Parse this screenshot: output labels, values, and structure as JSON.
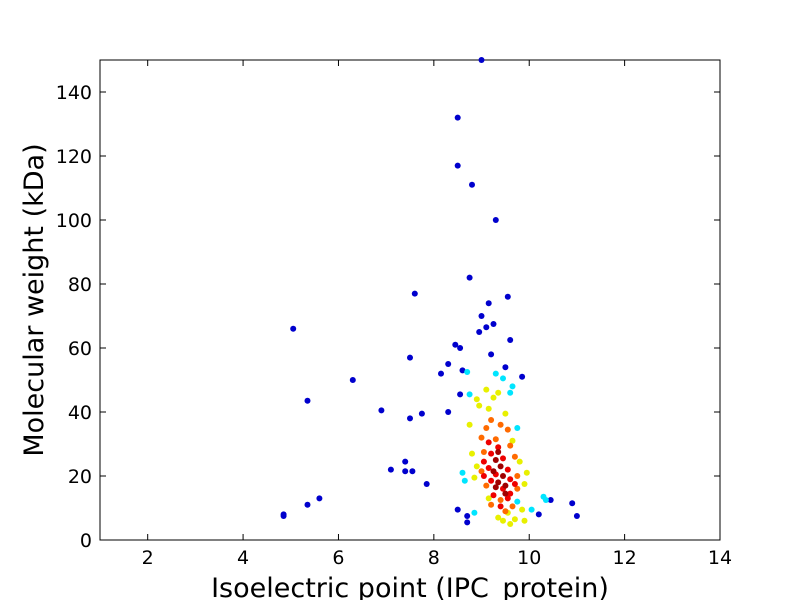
{
  "chart_data": {
    "type": "scatter",
    "xlabel": "Isoelectric point (IPC_protein)",
    "ylabel": "Molecular weight (kDa)",
    "xlim": [
      1,
      14
    ],
    "ylim": [
      0,
      150
    ],
    "xticks": [
      2,
      4,
      6,
      8,
      10,
      12,
      14
    ],
    "yticks": [
      0,
      20,
      40,
      60,
      80,
      100,
      120,
      140
    ],
    "grid": false,
    "color_by": "point density (jet colormap)",
    "colors": {
      "low": "#0000cd",
      "cyan": "#00e5ff",
      "yellow": "#e8f000",
      "orange": "#ff6a00",
      "red": "#ee0000",
      "high": "#a00000"
    },
    "points": [
      {
        "x": 9.0,
        "y": 150,
        "c": "low"
      },
      {
        "x": 8.5,
        "y": 132,
        "c": "low"
      },
      {
        "x": 8.5,
        "y": 117,
        "c": "low"
      },
      {
        "x": 8.8,
        "y": 111,
        "c": "low"
      },
      {
        "x": 9.3,
        "y": 100,
        "c": "low"
      },
      {
        "x": 8.75,
        "y": 82,
        "c": "low"
      },
      {
        "x": 7.6,
        "y": 77,
        "c": "low"
      },
      {
        "x": 9.55,
        "y": 76,
        "c": "low"
      },
      {
        "x": 9.15,
        "y": 74,
        "c": "low"
      },
      {
        "x": 9.0,
        "y": 70,
        "c": "low"
      },
      {
        "x": 9.25,
        "y": 67.5,
        "c": "low"
      },
      {
        "x": 9.1,
        "y": 66.5,
        "c": "low"
      },
      {
        "x": 5.05,
        "y": 66,
        "c": "low"
      },
      {
        "x": 8.95,
        "y": 65,
        "c": "low"
      },
      {
        "x": 9.6,
        "y": 62.5,
        "c": "low"
      },
      {
        "x": 8.45,
        "y": 61,
        "c": "low"
      },
      {
        "x": 8.55,
        "y": 60,
        "c": "low"
      },
      {
        "x": 9.2,
        "y": 58,
        "c": "low"
      },
      {
        "x": 7.5,
        "y": 57,
        "c": "low"
      },
      {
        "x": 8.3,
        "y": 55,
        "c": "low"
      },
      {
        "x": 9.5,
        "y": 54,
        "c": "low"
      },
      {
        "x": 8.6,
        "y": 53,
        "c": "low"
      },
      {
        "x": 8.15,
        "y": 52,
        "c": "low"
      },
      {
        "x": 9.85,
        "y": 51,
        "c": "low"
      },
      {
        "x": 6.3,
        "y": 50,
        "c": "low"
      },
      {
        "x": 8.55,
        "y": 45.5,
        "c": "low"
      },
      {
        "x": 5.35,
        "y": 43.5,
        "c": "low"
      },
      {
        "x": 6.9,
        "y": 40.5,
        "c": "low"
      },
      {
        "x": 8.3,
        "y": 40,
        "c": "low"
      },
      {
        "x": 7.75,
        "y": 39.5,
        "c": "low"
      },
      {
        "x": 7.5,
        "y": 38,
        "c": "low"
      },
      {
        "x": 7.4,
        "y": 24.5,
        "c": "low"
      },
      {
        "x": 7.1,
        "y": 22,
        "c": "low"
      },
      {
        "x": 7.4,
        "y": 21.5,
        "c": "low"
      },
      {
        "x": 7.55,
        "y": 21.5,
        "c": "low"
      },
      {
        "x": 7.85,
        "y": 17.5,
        "c": "low"
      },
      {
        "x": 5.6,
        "y": 13,
        "c": "low"
      },
      {
        "x": 10.45,
        "y": 12.5,
        "c": "low"
      },
      {
        "x": 10.9,
        "y": 11.5,
        "c": "low"
      },
      {
        "x": 5.35,
        "y": 11,
        "c": "low"
      },
      {
        "x": 8.5,
        "y": 9.5,
        "c": "low"
      },
      {
        "x": 4.85,
        "y": 8,
        "c": "low"
      },
      {
        "x": 4.85,
        "y": 7.5,
        "c": "low"
      },
      {
        "x": 11.0,
        "y": 7.5,
        "c": "low"
      },
      {
        "x": 8.7,
        "y": 7.5,
        "c": "low"
      },
      {
        "x": 8.7,
        "y": 5.5,
        "c": "low"
      },
      {
        "x": 10.2,
        "y": 8,
        "c": "low"
      },
      {
        "x": 8.7,
        "y": 52.5,
        "c": "cyan"
      },
      {
        "x": 9.3,
        "y": 52,
        "c": "cyan"
      },
      {
        "x": 9.45,
        "y": 50.5,
        "c": "cyan"
      },
      {
        "x": 9.65,
        "y": 48,
        "c": "cyan"
      },
      {
        "x": 8.75,
        "y": 45.5,
        "c": "cyan"
      },
      {
        "x": 9.6,
        "y": 46,
        "c": "cyan"
      },
      {
        "x": 9.75,
        "y": 35,
        "c": "cyan"
      },
      {
        "x": 8.6,
        "y": 21,
        "c": "cyan"
      },
      {
        "x": 8.65,
        "y": 18.5,
        "c": "cyan"
      },
      {
        "x": 10.3,
        "y": 13.5,
        "c": "cyan"
      },
      {
        "x": 10.35,
        "y": 12.5,
        "c": "cyan"
      },
      {
        "x": 9.75,
        "y": 12,
        "c": "cyan"
      },
      {
        "x": 10.05,
        "y": 9.5,
        "c": "cyan"
      },
      {
        "x": 8.85,
        "y": 8.5,
        "c": "cyan"
      },
      {
        "x": 9.1,
        "y": 47,
        "c": "yellow"
      },
      {
        "x": 9.35,
        "y": 46,
        "c": "yellow"
      },
      {
        "x": 8.9,
        "y": 44,
        "c": "yellow"
      },
      {
        "x": 9.25,
        "y": 44.5,
        "c": "yellow"
      },
      {
        "x": 8.95,
        "y": 42,
        "c": "yellow"
      },
      {
        "x": 9.15,
        "y": 41,
        "c": "yellow"
      },
      {
        "x": 9.5,
        "y": 39.5,
        "c": "yellow"
      },
      {
        "x": 8.75,
        "y": 36,
        "c": "yellow"
      },
      {
        "x": 9.65,
        "y": 31,
        "c": "yellow"
      },
      {
        "x": 8.8,
        "y": 27,
        "c": "yellow"
      },
      {
        "x": 9.8,
        "y": 24.5,
        "c": "yellow"
      },
      {
        "x": 8.9,
        "y": 23,
        "c": "yellow"
      },
      {
        "x": 9.95,
        "y": 21,
        "c": "yellow"
      },
      {
        "x": 8.85,
        "y": 19.5,
        "c": "yellow"
      },
      {
        "x": 9.9,
        "y": 17.5,
        "c": "yellow"
      },
      {
        "x": 9.15,
        "y": 13,
        "c": "yellow"
      },
      {
        "x": 9.85,
        "y": 9.5,
        "c": "yellow"
      },
      {
        "x": 9.55,
        "y": 8.5,
        "c": "yellow"
      },
      {
        "x": 9.45,
        "y": 6,
        "c": "yellow"
      },
      {
        "x": 9.7,
        "y": 6.5,
        "c": "yellow"
      },
      {
        "x": 9.9,
        "y": 6,
        "c": "yellow"
      },
      {
        "x": 9.35,
        "y": 7,
        "c": "yellow"
      },
      {
        "x": 9.6,
        "y": 5,
        "c": "yellow"
      },
      {
        "x": 9.2,
        "y": 37.5,
        "c": "orange"
      },
      {
        "x": 9.4,
        "y": 36,
        "c": "orange"
      },
      {
        "x": 9.1,
        "y": 35,
        "c": "orange"
      },
      {
        "x": 9.55,
        "y": 34.5,
        "c": "orange"
      },
      {
        "x": 9.0,
        "y": 32,
        "c": "orange"
      },
      {
        "x": 9.3,
        "y": 31.5,
        "c": "orange"
      },
      {
        "x": 9.6,
        "y": 29.5,
        "c": "orange"
      },
      {
        "x": 9.05,
        "y": 27.5,
        "c": "orange"
      },
      {
        "x": 9.7,
        "y": 26,
        "c": "orange"
      },
      {
        "x": 9.0,
        "y": 21.5,
        "c": "orange"
      },
      {
        "x": 9.75,
        "y": 20,
        "c": "orange"
      },
      {
        "x": 9.1,
        "y": 17,
        "c": "orange"
      },
      {
        "x": 9.75,
        "y": 16,
        "c": "orange"
      },
      {
        "x": 9.2,
        "y": 11,
        "c": "orange"
      },
      {
        "x": 9.65,
        "y": 10.5,
        "c": "orange"
      },
      {
        "x": 9.5,
        "y": 9,
        "c": "orange"
      },
      {
        "x": 9.4,
        "y": 12.5,
        "c": "orange"
      },
      {
        "x": 9.15,
        "y": 30.5,
        "c": "red"
      },
      {
        "x": 9.35,
        "y": 29,
        "c": "red"
      },
      {
        "x": 9.2,
        "y": 27,
        "c": "red"
      },
      {
        "x": 9.45,
        "y": 25.5,
        "c": "red"
      },
      {
        "x": 9.05,
        "y": 24.5,
        "c": "red"
      },
      {
        "x": 9.15,
        "y": 22.5,
        "c": "red"
      },
      {
        "x": 9.55,
        "y": 22,
        "c": "red"
      },
      {
        "x": 9.05,
        "y": 20,
        "c": "red"
      },
      {
        "x": 9.6,
        "y": 19,
        "c": "red"
      },
      {
        "x": 9.2,
        "y": 18.5,
        "c": "red"
      },
      {
        "x": 9.7,
        "y": 17.5,
        "c": "red"
      },
      {
        "x": 9.45,
        "y": 16,
        "c": "red"
      },
      {
        "x": 9.6,
        "y": 14.5,
        "c": "red"
      },
      {
        "x": 9.25,
        "y": 14,
        "c": "red"
      },
      {
        "x": 9.55,
        "y": 13,
        "c": "red"
      },
      {
        "x": 9.4,
        "y": 10.5,
        "c": "red"
      },
      {
        "x": 9.3,
        "y": 20.5,
        "c": "red"
      },
      {
        "x": 9.3,
        "y": 25,
        "c": "high"
      },
      {
        "x": 9.4,
        "y": 23,
        "c": "high"
      },
      {
        "x": 9.25,
        "y": 21.5,
        "c": "high"
      },
      {
        "x": 9.45,
        "y": 20,
        "c": "high"
      },
      {
        "x": 9.35,
        "y": 18,
        "c": "high"
      },
      {
        "x": 9.5,
        "y": 17,
        "c": "high"
      },
      {
        "x": 9.3,
        "y": 16.5,
        "c": "high"
      },
      {
        "x": 9.5,
        "y": 14.5,
        "c": "high"
      },
      {
        "x": 9.35,
        "y": 27.5,
        "c": "high"
      }
    ]
  }
}
